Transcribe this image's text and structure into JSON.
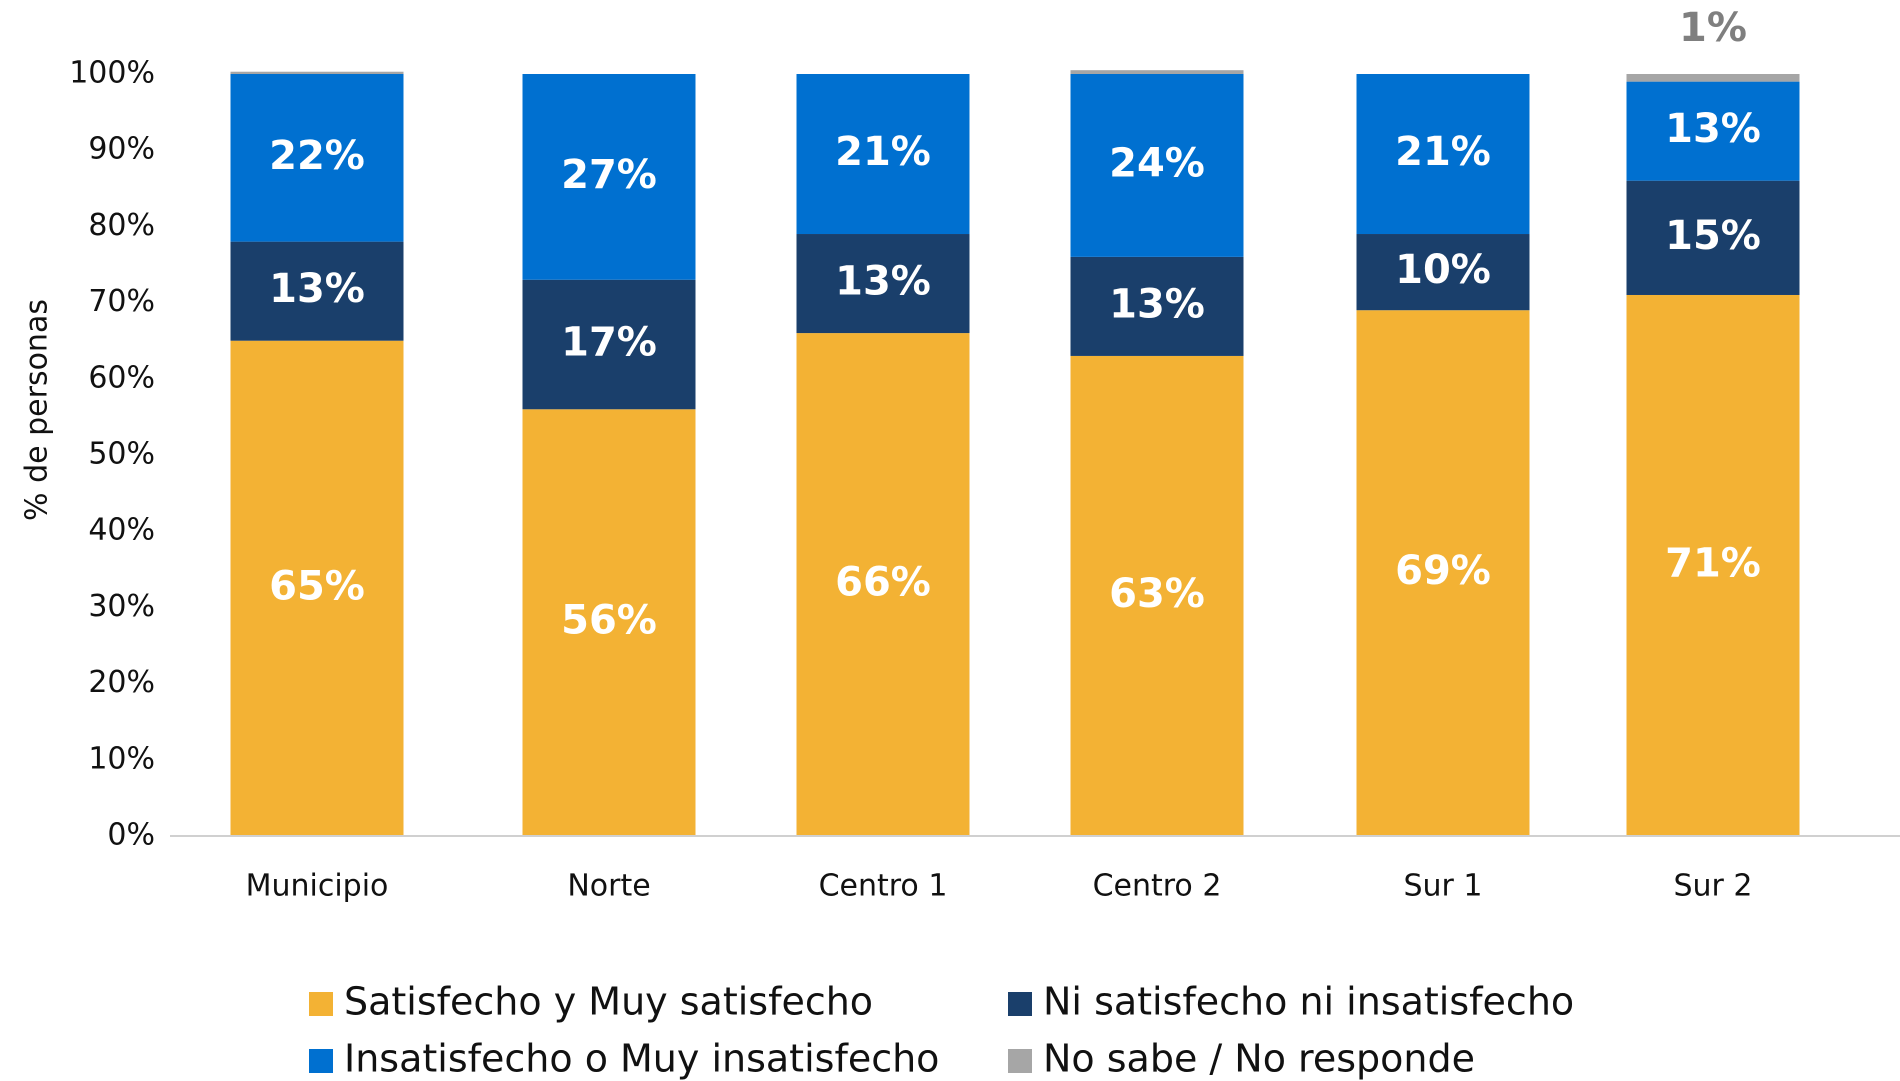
{
  "chart_data": {
    "type": "stacked_bar",
    "y_label": "% de personas",
    "categories": [
      "Municipio",
      "Norte",
      "Centro 1",
      "Centro 2",
      "Sur 1",
      "Sur 2"
    ],
    "series": [
      {
        "name": "Satisfecho y Muy satisfecho",
        "color": "#F3B234",
        "values": [
          65,
          56,
          66,
          63,
          69,
          71
        ],
        "value_labels": [
          "65%",
          "56%",
          "66%",
          "63%",
          "69%",
          "71%"
        ]
      },
      {
        "name": "Ni satisfecho ni insatisfecho",
        "color": "#1A3F6B",
        "values": [
          13,
          17,
          13,
          13,
          10,
          15
        ],
        "value_labels": [
          "13%",
          "17%",
          "13%",
          "13%",
          "10%",
          "15%"
        ]
      },
      {
        "name": "Insatisfecho o Muy insatisfecho",
        "color": "#0070D0",
        "values": [
          22,
          27,
          21,
          24,
          21,
          13
        ],
        "value_labels": [
          "22%",
          "27%",
          "21%",
          "24%",
          "21%",
          "13%"
        ]
      },
      {
        "name": "No sabe / No responde",
        "color": "#A6A6A6",
        "values": [
          0.3,
          0,
          0,
          0.5,
          0,
          1
        ],
        "value_labels": [
          null,
          null,
          null,
          null,
          null,
          "1%"
        ]
      }
    ],
    "ylim": [
      0,
      100
    ],
    "yticks": [
      {
        "value": 0,
        "label": "0%"
      },
      {
        "value": 10,
        "label": "10%"
      },
      {
        "value": 20,
        "label": "20%"
      },
      {
        "value": 30,
        "label": "30%"
      },
      {
        "value": 40,
        "label": "40%"
      },
      {
        "value": 50,
        "label": "50%"
      },
      {
        "value": 60,
        "label": "60%"
      },
      {
        "value": 70,
        "label": "70%"
      },
      {
        "value": 80,
        "label": "80%"
      },
      {
        "value": 90,
        "label": "90%"
      },
      {
        "value": 100,
        "label": "100%"
      }
    ],
    "legend": "bottom"
  }
}
